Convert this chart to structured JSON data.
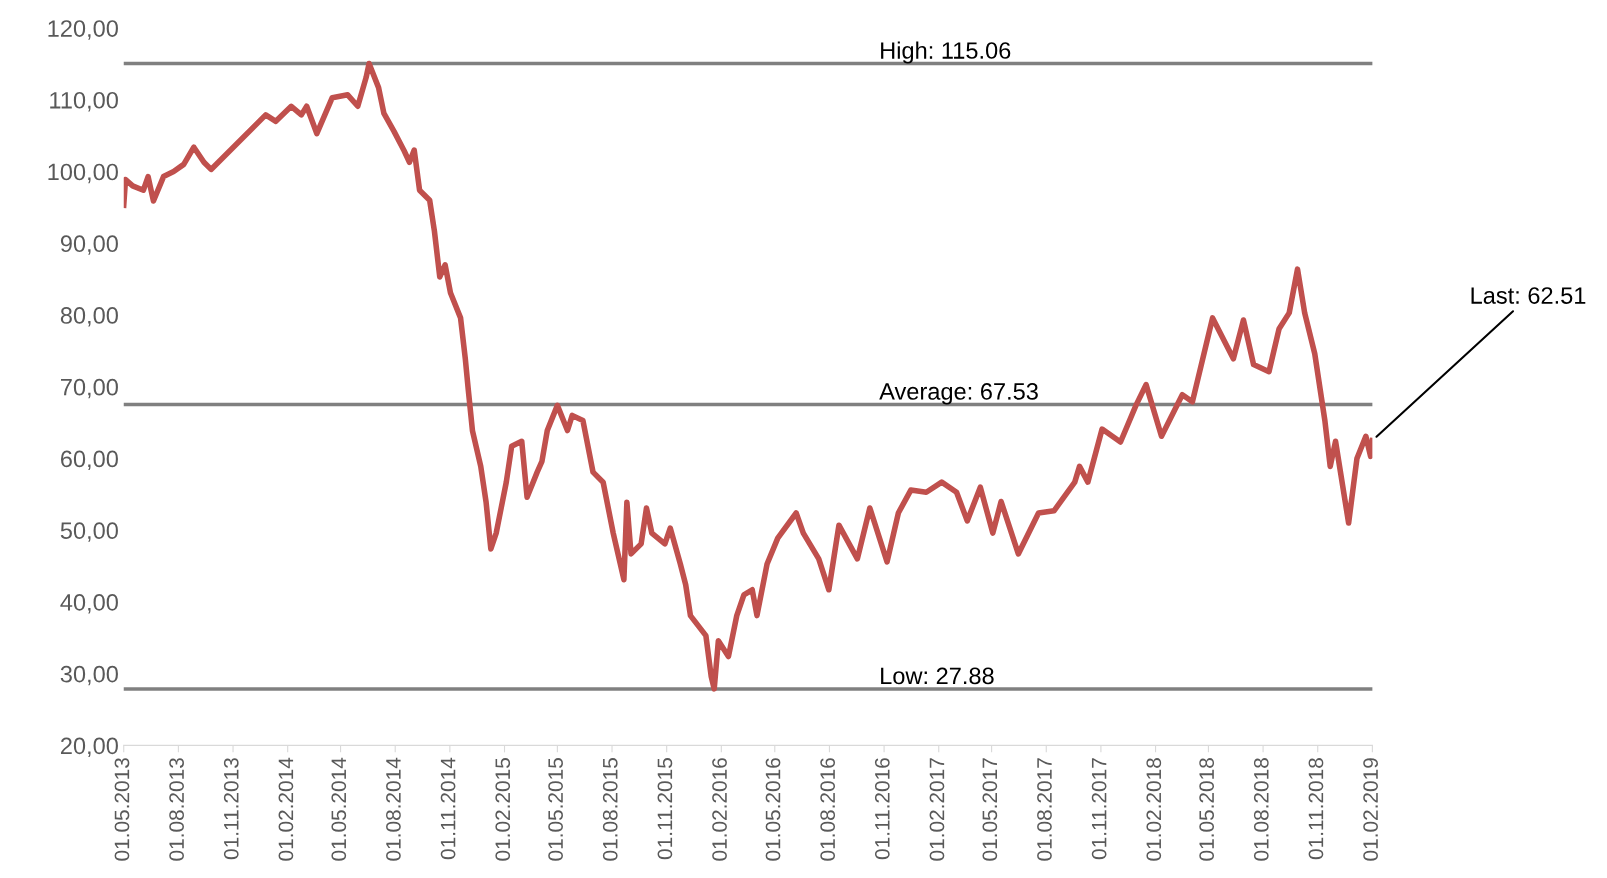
{
  "chart_data": {
    "type": "line",
    "x": [
      "2013-05-01",
      "2013-05-04",
      "2013-05-16",
      "2013-06-03",
      "2013-06-11",
      "2013-06-20",
      "2013-07-07",
      "2013-07-24",
      "2013-08-10",
      "2013-08-27",
      "2013-09-13",
      "2013-09-25",
      "2013-12-26",
      "2014-01-12",
      "2014-02-07",
      "2014-02-24",
      "2014-03-05",
      "2014-03-22",
      "2014-04-17",
      "2014-05-13",
      "2014-05-30",
      "2014-06-13",
      "2014-06-18",
      "2014-07-04",
      "2014-07-13",
      "2014-07-30",
      "2014-08-16",
      "2014-08-25",
      "2014-09-02",
      "2014-09-11",
      "2014-09-28",
      "2014-10-06",
      "2014-10-15",
      "2014-10-24",
      "2014-11-02",
      "2014-11-19",
      "2014-11-27",
      "2014-12-02",
      "2014-12-09",
      "2014-12-23",
      "2015-01-01",
      "2015-01-09",
      "2015-01-18",
      "2015-02-04",
      "2015-02-13",
      "2015-03-02",
      "2015-03-11",
      "2015-03-28",
      "2015-04-05",
      "2015-04-14",
      "2015-05-01",
      "2015-05-18",
      "2015-05-26",
      "2015-06-13",
      "2015-06-30",
      "2015-07-17",
      "2015-08-03",
      "2015-08-21",
      "2015-08-26",
      "2015-09-02",
      "2015-09-19",
      "2015-09-28",
      "2015-10-07",
      "2015-10-29",
      "2015-11-07",
      "2015-11-24",
      "2015-12-03",
      "2015-12-11",
      "2016-01-06",
      "2016-01-15",
      "2016-01-20",
      "2016-01-27",
      "2016-02-13",
      "2016-02-27",
      "2016-03-10",
      "2016-03-24",
      "2016-04-01",
      "2016-04-18",
      "2016-05-06",
      "2016-06-06",
      "2016-06-18",
      "2016-07-14",
      "2016-07-31",
      "2016-08-17",
      "2016-09-17",
      "2016-10-08",
      "2016-11-06",
      "2016-11-25",
      "2016-12-16",
      "2017-01-11",
      "2017-02-06",
      "2017-03-03",
      "2017-03-21",
      "2017-04-12",
      "2017-05-03",
      "2017-05-17",
      "2017-06-15",
      "2017-07-19",
      "2017-08-14",
      "2017-09-18",
      "2017-09-26",
      "2017-10-10",
      "2017-11-03",
      "2017-12-04",
      "2017-12-30",
      "2018-01-16",
      "2018-02-11",
      "2018-03-18",
      "2018-04-04",
      "2018-05-08",
      "2018-06-12",
      "2018-06-29",
      "2018-07-16",
      "2018-08-11",
      "2018-08-28",
      "2018-09-14",
      "2018-09-28",
      "2018-10-10",
      "2018-10-27",
      "2018-11-13",
      "2018-11-22",
      "2018-12-01",
      "2018-12-23",
      "2019-01-06",
      "2019-01-21",
      "2019-01-29",
      "2019-02-01"
    ],
    "series": [
      {
        "color": "#c0504d",
        "values": [
          95.3,
          98.9,
          98,
          97.4,
          99.3,
          95.9,
          99.3,
          100,
          101,
          103.4,
          101.3,
          100.3,
          107.9,
          107,
          109.1,
          107.9,
          109.1,
          105.3,
          110.3,
          110.7,
          109.1,
          113.1,
          115.06,
          111.7,
          108.1,
          105.6,
          102.9,
          101.3,
          103,
          97.4,
          96,
          91.7,
          85.3,
          87,
          83.1,
          79.6,
          73.9,
          69.6,
          63.9,
          58.9,
          53.9,
          47.4,
          49.6,
          56.7,
          61.7,
          62.4,
          54.6,
          58.1,
          59.6,
          63.9,
          67.4,
          63.9,
          66,
          65.3,
          58.1,
          56.7,
          49.6,
          43.1,
          53.9,
          46.7,
          48.1,
          53.1,
          49.6,
          48.1,
          50.3,
          45.3,
          42.4,
          38.1,
          35.3,
          29.6,
          27.88,
          34.6,
          32.4,
          38.1,
          41,
          41.7,
          38.1,
          45.3,
          48.9,
          52.4,
          49.6,
          46,
          41.7,
          50.7,
          46,
          53.1,
          45.6,
          52.4,
          55.6,
          55.3,
          56.7,
          55.3,
          51.3,
          56,
          49.6,
          54,
          46.7,
          52.4,
          52.7,
          56.7,
          58.9,
          56.7,
          64.1,
          62.3,
          67.4,
          70.3,
          63.1,
          68.9,
          67.9,
          79.6,
          73.9,
          79.3,
          73.1,
          72.1,
          78.1,
          80.3,
          86.4,
          80.3,
          74.6,
          65.3,
          58.9,
          62.4,
          51,
          60,
          63.1,
          60.3,
          62.51
        ]
      }
    ],
    "xlim": [
      "2013-05-01",
      "2019-02-01"
    ],
    "xticks": [
      {
        "value": "2013-05-01",
        "label": "01.05.2013"
      },
      {
        "value": "2013-08-01",
        "label": "01.08.2013"
      },
      {
        "value": "2013-11-01",
        "label": "01.11.2013"
      },
      {
        "value": "2014-02-01",
        "label": "01.02.2014"
      },
      {
        "value": "2014-05-01",
        "label": "01.05.2014"
      },
      {
        "value": "2014-08-01",
        "label": "01.08.2014"
      },
      {
        "value": "2014-11-01",
        "label": "01.11.2014"
      },
      {
        "value": "2015-02-01",
        "label": "01.02.2015"
      },
      {
        "value": "2015-05-01",
        "label": "01.05.2015"
      },
      {
        "value": "2015-08-01",
        "label": "01.08.2015"
      },
      {
        "value": "2015-11-01",
        "label": "01.11.2015"
      },
      {
        "value": "2016-02-01",
        "label": "01.02.2016"
      },
      {
        "value": "2016-05-01",
        "label": "01.05.2016"
      },
      {
        "value": "2016-08-01",
        "label": "01.08.2016"
      },
      {
        "value": "2016-11-01",
        "label": "01.11.2016"
      },
      {
        "value": "2017-02-01",
        "label": "01.02.2017"
      },
      {
        "value": "2017-05-01",
        "label": "01.05.2017"
      },
      {
        "value": "2017-08-01",
        "label": "01.08.2017"
      },
      {
        "value": "2017-11-01",
        "label": "01.11.2017"
      },
      {
        "value": "2018-02-01",
        "label": "01.02.2018"
      },
      {
        "value": "2018-05-01",
        "label": "01.05.2018"
      },
      {
        "value": "2018-08-01",
        "label": "01.08.2018"
      },
      {
        "value": "2018-11-01",
        "label": "01.11.2018"
      },
      {
        "value": "2019-02-01",
        "label": "01.02.2019"
      }
    ],
    "ylim": [
      20,
      120
    ],
    "yticks": [
      {
        "value": 20,
        "label": "20,00"
      },
      {
        "value": 30,
        "label": "30,00"
      },
      {
        "value": 40,
        "label": "40,00"
      },
      {
        "value": 50,
        "label": "50,00"
      },
      {
        "value": 60,
        "label": "60,00"
      },
      {
        "value": 70,
        "label": "70,00"
      },
      {
        "value": 80,
        "label": "80,00"
      },
      {
        "value": 90,
        "label": "90,00"
      },
      {
        "value": 100,
        "label": "100,00"
      },
      {
        "value": 110,
        "label": "110,00"
      },
      {
        "value": 120,
        "label": "120,00"
      }
    ],
    "ref_lines": [
      {
        "axis": "y",
        "value": 115.06,
        "label": "High: 115.06",
        "color": "#808080"
      },
      {
        "axis": "y",
        "value": 67.53,
        "label": "Average: 67.53",
        "color": "#808080"
      },
      {
        "axis": "y",
        "value": 27.88,
        "label": "Low: 27.88",
        "color": "#808080"
      }
    ],
    "annotations": [
      {
        "text": "Last: 62.51",
        "x": "2019-02-01",
        "y": 62.51
      }
    ],
    "grid": false,
    "legend": false,
    "marker": "none",
    "line_style": "solid"
  }
}
